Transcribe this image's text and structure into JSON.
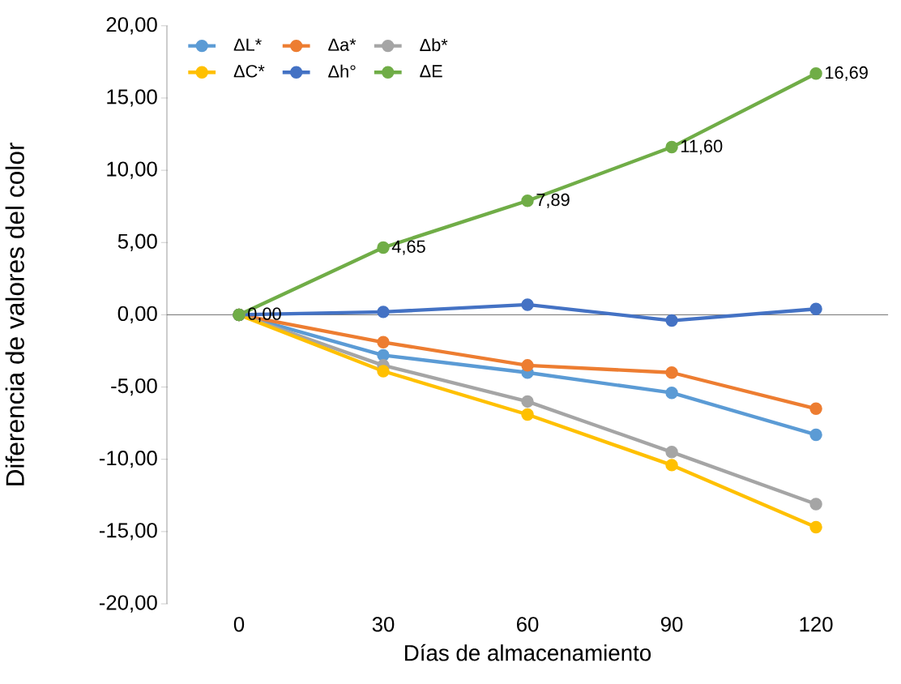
{
  "chart_data": {
    "type": "line",
    "xlabel": "Días de almacenamiento",
    "ylabel": "Diferencia de valores del color",
    "categories": [
      "0",
      "30",
      "60",
      "90",
      "120"
    ],
    "ylim": [
      -20,
      20
    ],
    "yticks": [
      {
        "value": -20,
        "label": "-20,00"
      },
      {
        "value": -15,
        "label": "-15,00"
      },
      {
        "value": -10,
        "label": "-10,00"
      },
      {
        "value": -5,
        "label": "-5,00"
      },
      {
        "value": 0,
        "label": "0,00"
      },
      {
        "value": 5,
        "label": "5,00"
      },
      {
        "value": 10,
        "label": "10,00"
      },
      {
        "value": 15,
        "label": "15,00"
      },
      {
        "value": 20,
        "label": "20,00"
      }
    ],
    "marker": "circle",
    "line_style": "solid",
    "legend": "top left",
    "series": [
      {
        "name": "ΔL*",
        "color": "#5b9bd5",
        "values": [
          0,
          -2.8,
          -4.0,
          -5.4,
          -8.3
        ]
      },
      {
        "name": "Δa*",
        "color": "#ed7d31",
        "values": [
          0,
          -1.9,
          -3.5,
          -4.0,
          -6.5
        ]
      },
      {
        "name": "Δb*",
        "color": "#a5a5a5",
        "values": [
          0,
          -3.5,
          -6.0,
          -9.5,
          -13.1
        ]
      },
      {
        "name": "ΔC*",
        "color": "#ffc000",
        "values": [
          0,
          -3.9,
          -6.9,
          -10.4,
          -14.7
        ]
      },
      {
        "name": "Δh°",
        "color": "#4472c4",
        "values": [
          0,
          0.2,
          0.7,
          -0.4,
          0.4
        ]
      },
      {
        "name": "ΔE",
        "color": "#70ad47",
        "values": [
          0,
          4.65,
          7.89,
          11.6,
          16.69
        ],
        "value_labels": [
          "0,00",
          "4,65",
          "7,89",
          "11,60",
          "16,69"
        ]
      }
    ]
  }
}
